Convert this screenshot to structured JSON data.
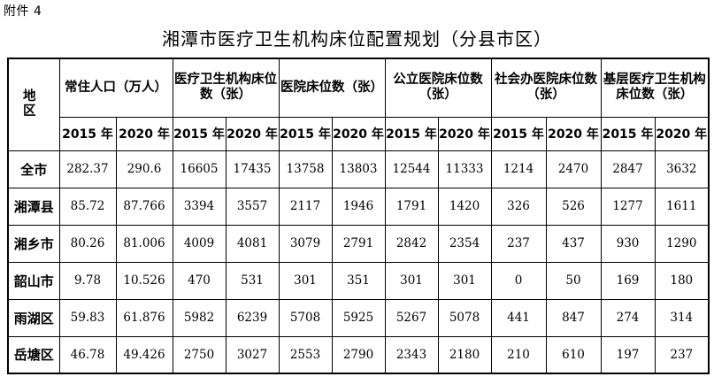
{
  "attachment_label": "附件 4",
  "title": "湘潭市医疗卫生机构床位配置规划（分县市区）",
  "table": {
    "region_header": "地 区",
    "group_headers": [
      "常住人口（万人）",
      "医疗卫生机构床位数（张）",
      "医院床位数（张）",
      "公立医院床位数（张）",
      "社会办医院床位数（张）",
      "基层医疗卫生机构床位数（张）"
    ],
    "years": [
      "2015 年",
      "2020 年"
    ],
    "rows": [
      {
        "region": "全市",
        "values": [
          "282.37",
          "290.6",
          "16605",
          "17435",
          "13758",
          "13803",
          "12544",
          "11333",
          "1214",
          "2470",
          "2847",
          "3632"
        ]
      },
      {
        "region": "湘潭县",
        "values": [
          "85.72",
          "87.766",
          "3394",
          "3557",
          "2117",
          "1946",
          "1791",
          "1420",
          "326",
          "526",
          "1277",
          "1611"
        ]
      },
      {
        "region": "湘乡市",
        "values": [
          "80.26",
          "81.006",
          "4009",
          "4081",
          "3079",
          "2791",
          "2842",
          "2354",
          "237",
          "437",
          "930",
          "1290"
        ]
      },
      {
        "region": "韶山市",
        "values": [
          "9.78",
          "10.526",
          "470",
          "531",
          "301",
          "351",
          "301",
          "301",
          "0",
          "50",
          "169",
          "180"
        ]
      },
      {
        "region": "雨湖区",
        "values": [
          "59.83",
          "61.876",
          "5982",
          "6239",
          "5708",
          "5925",
          "5267",
          "5078",
          "441",
          "847",
          "274",
          "314"
        ]
      },
      {
        "region": "岳塘区",
        "values": [
          "46.78",
          "49.426",
          "2750",
          "3027",
          "2553",
          "2790",
          "2343",
          "2180",
          "210",
          "610",
          "197",
          "237"
        ]
      }
    ]
  }
}
